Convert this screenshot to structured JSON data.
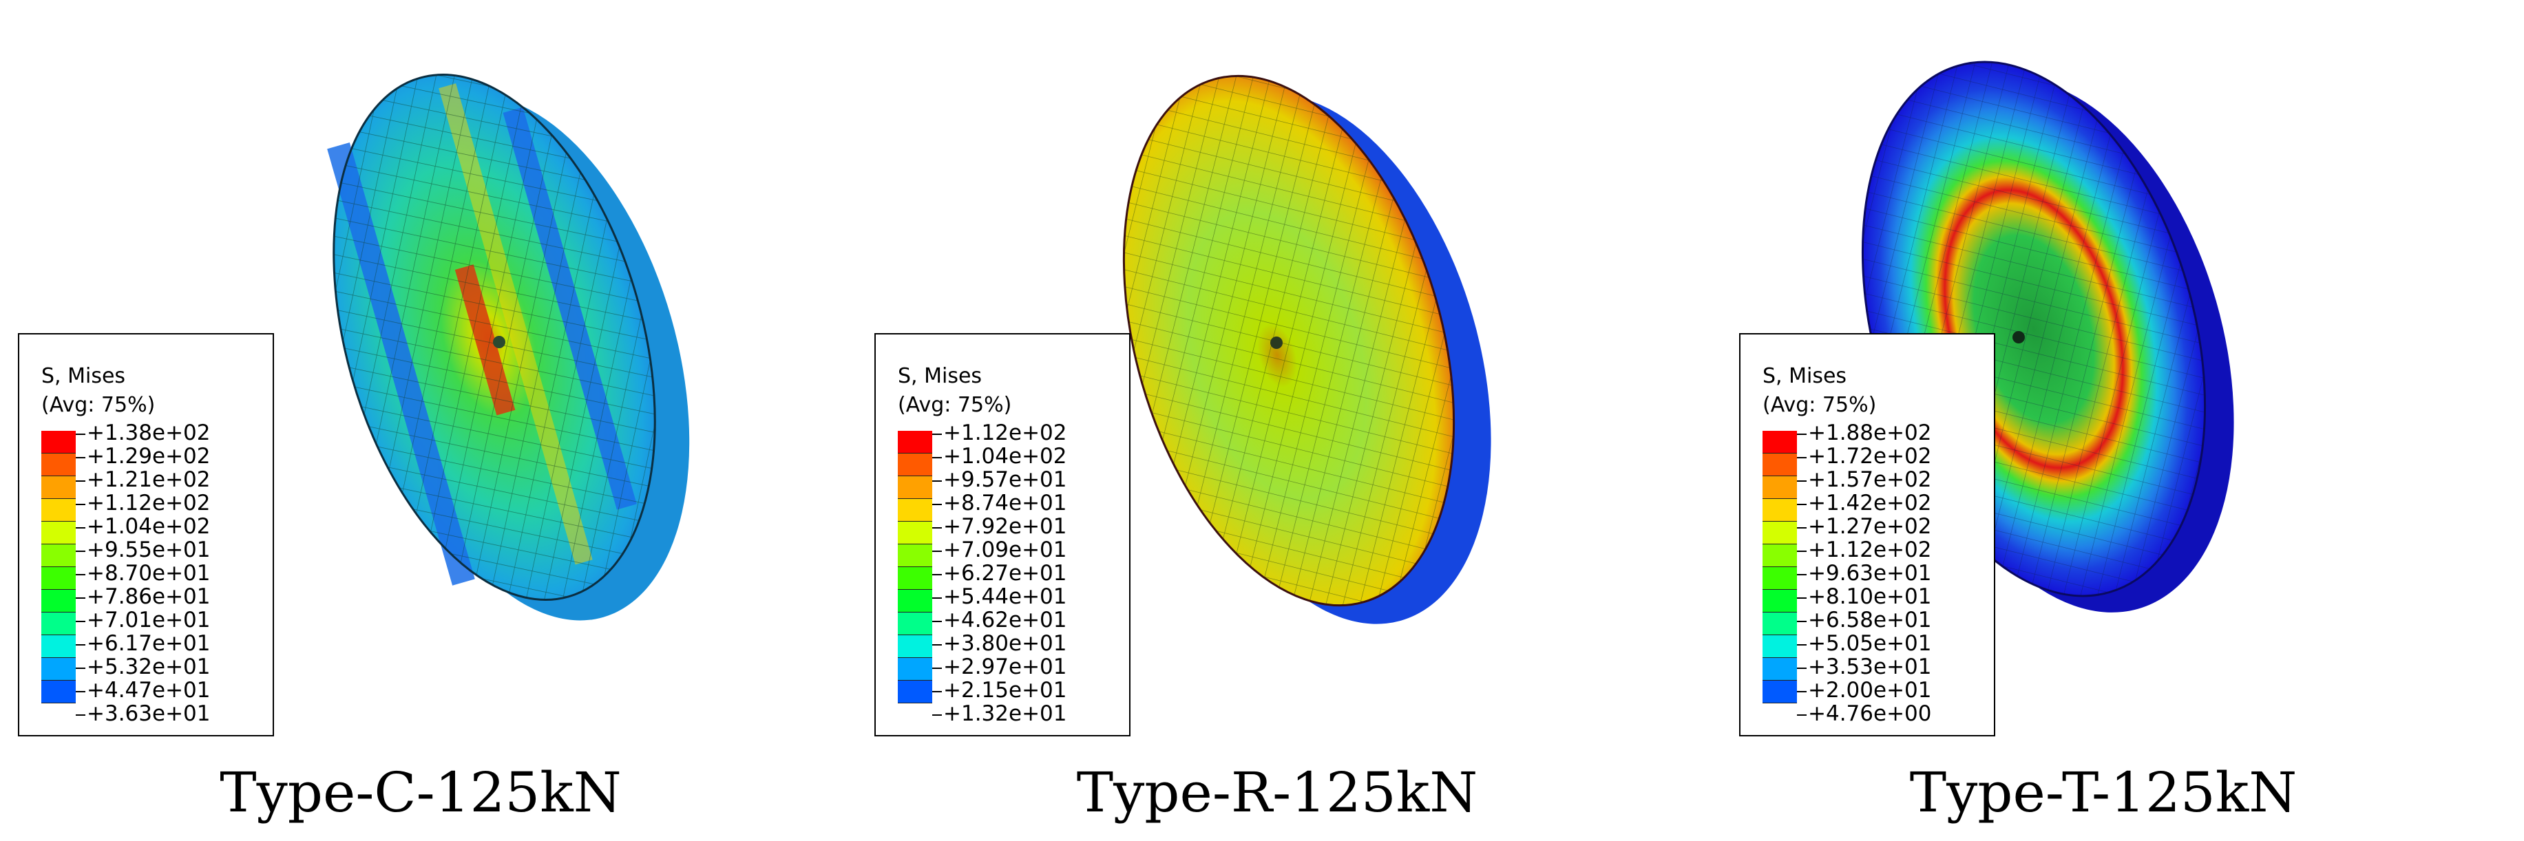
{
  "panels": [
    {
      "caption": "Type-C-125kN",
      "legend": {
        "title": "S, Mises",
        "subtitle": "(Avg: 75%)",
        "values": [
          "+1.38e+02",
          "+1.29e+02",
          "+1.21e+02",
          "+1.12e+02",
          "+1.04e+02",
          "+9.55e+01",
          "+8.70e+01",
          "+7.86e+01",
          "+7.01e+01",
          "+6.17e+01",
          "+5.32e+01",
          "+4.47e+01",
          "+3.63e+01"
        ]
      }
    },
    {
      "caption": "Type-R-125kN",
      "legend": {
        "title": "S, Mises",
        "subtitle": "(Avg: 75%)",
        "values": [
          "+1.12e+02",
          "+1.04e+02",
          "+9.57e+01",
          "+8.74e+01",
          "+7.92e+01",
          "+7.09e+01",
          "+6.27e+01",
          "+5.44e+01",
          "+4.62e+01",
          "+3.80e+01",
          "+2.97e+01",
          "+2.15e+01",
          "+1.32e+01"
        ]
      }
    },
    {
      "caption": "Type-T-125kN",
      "legend": {
        "title": "S, Mises",
        "subtitle": "(Avg: 75%)",
        "values": [
          "+1.88e+02",
          "+1.72e+02",
          "+1.57e+02",
          "+1.42e+02",
          "+1.27e+02",
          "+1.12e+02",
          "+9.63e+01",
          "+8.10e+01",
          "+6.58e+01",
          "+5.05e+01",
          "+3.53e+01",
          "+2.00e+01",
          "+4.76e+00"
        ]
      }
    }
  ],
  "colormap": [
    "#ff0000",
    "#ff5a00",
    "#ffa100",
    "#ffd700",
    "#d4ff00",
    "#89ff00",
    "#3cff00",
    "#00ff2a",
    "#00ff8a",
    "#00f2e0",
    "#00a6ff",
    "#005aff",
    "#0000ff"
  ]
}
